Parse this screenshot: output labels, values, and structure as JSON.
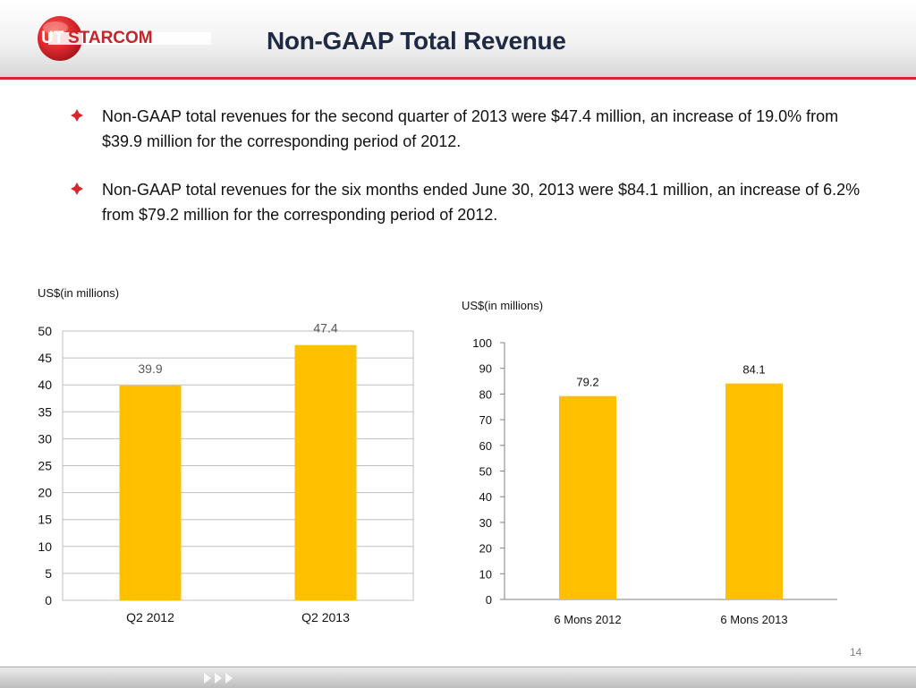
{
  "slide": {
    "title": "Non-GAAP Total Revenue",
    "page_number": "14",
    "logo_text": "UTSTARCOM",
    "bullets": [
      "Non-GAAP total revenues for the second quarter of 2013 were $47.4 million, an increase of 19.0% from $39.9 million for the corresponding period of 2012.",
      "Non-GAAP total revenues for the six months ended June 30, 2013 were $84.1 million, an increase of 6.2% from $79.2 million for the corresponding period of 2012."
    ]
  },
  "colors": {
    "bar": "#ffc000",
    "accent": "#d8262b",
    "title": "#1f2a44"
  },
  "chart_data": [
    {
      "type": "bar",
      "title": "",
      "ylabel": "US$(in millions)",
      "xlabel": "",
      "categories": [
        "Q2 2012",
        "Q2 2013"
      ],
      "values": [
        39.9,
        47.4
      ],
      "data_labels": [
        "39.9",
        "47.4"
      ],
      "ylim": [
        0,
        50
      ],
      "yticks": [
        0,
        5,
        10,
        15,
        20,
        25,
        30,
        35,
        40,
        45,
        50
      ],
      "grid": true,
      "legend": "none"
    },
    {
      "type": "bar",
      "title": "",
      "ylabel": "US$(in millions)",
      "xlabel": "",
      "categories": [
        "6 Mons 2012",
        "6 Mons 2013"
      ],
      "values": [
        79.2,
        84.1
      ],
      "data_labels": [
        "79.2",
        "84.1"
      ],
      "ylim": [
        0,
        100
      ],
      "yticks": [
        0,
        10,
        20,
        30,
        40,
        50,
        60,
        70,
        80,
        90,
        100
      ],
      "grid": false,
      "legend": "none"
    }
  ]
}
